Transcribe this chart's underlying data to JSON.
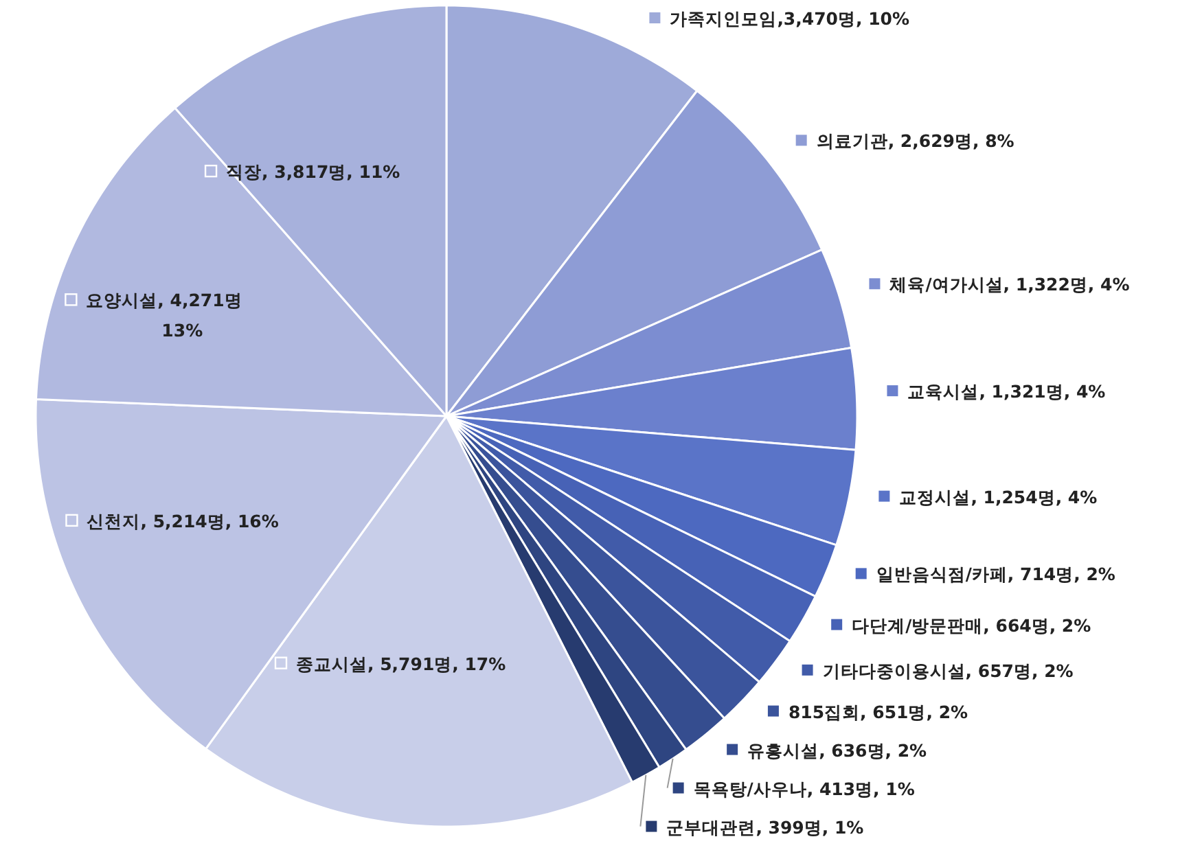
{
  "chart_data": {
    "type": "pie",
    "legend": "right",
    "categories": [
      "가족지인모임",
      "의료기관",
      "체육/여가시설",
      "교육시설",
      "교정시설",
      "일반음식점/카페",
      "다단계/방문판매",
      "기타다중이용시설",
      "815집회",
      "유흥시설",
      "목욕탕/사우나",
      "군부대관련",
      "종교시설",
      "신천지",
      "요양시설",
      "직장"
    ],
    "values": [
      3470,
      2629,
      1322,
      1321,
      1254,
      714,
      664,
      657,
      651,
      636,
      413,
      399,
      5791,
      5214,
      4271,
      3817
    ],
    "value_labels": [
      ",3,470명, 10%",
      ", 2,629명, 8%",
      ", 1,322명, 4%",
      ", 1,321명, 4%",
      ", 1,254명, 4%",
      ", 714명, 2%",
      ", 664명, 2%",
      ", 657명, 2%",
      ", 651명, 2%",
      ", 636명, 2%",
      ", 413명, 1%",
      ", 399명, 1%",
      ", 5,791명, 17%",
      ", 5,214명, 16%",
      ", 4,271명\n13%",
      ", 3,817명, 11%"
    ],
    "colors": [
      "#9eaad9",
      "#8e9cd5",
      "#7c8dd1",
      "#6b80cd",
      "#5a74c8",
      "#4d69c0",
      "#4762b6",
      "#415ba9",
      "#3b549c",
      "#354d8f",
      "#2e4581",
      "#273b6f",
      "#c8cee9",
      "#bcc3e4",
      "#b1b9e0",
      "#a7b1dc"
    ]
  }
}
